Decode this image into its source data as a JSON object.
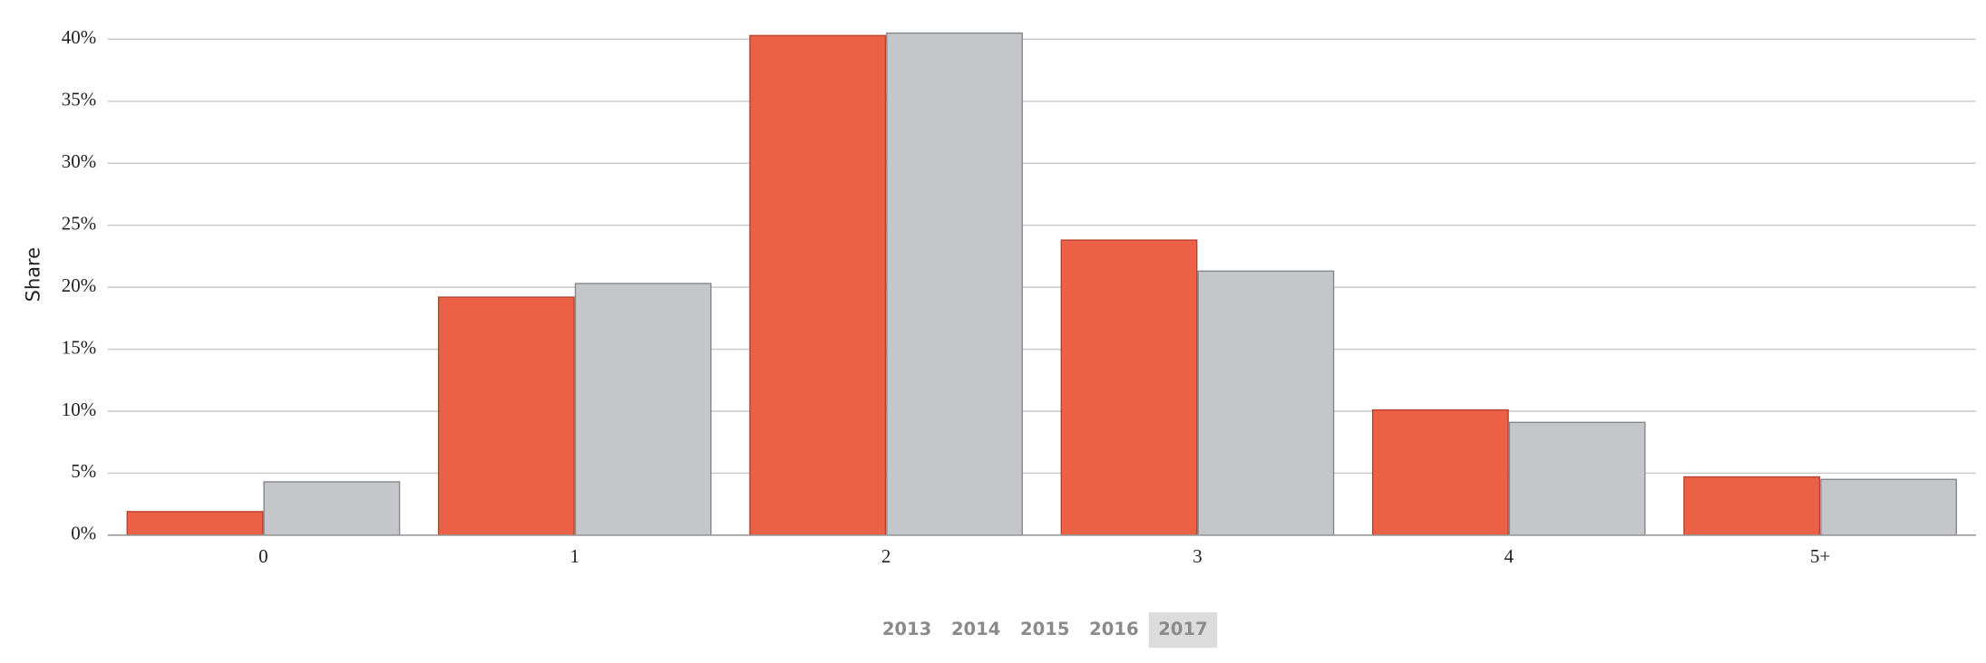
{
  "chart_data": {
    "type": "bar",
    "y_label": "Share",
    "categories": [
      "0",
      "1",
      "2",
      "3",
      "4",
      "5+"
    ],
    "series": [
      {
        "color": "#ec6046",
        "stroke": "#b5432f",
        "values": [
          1.9,
          19.2,
          40.3,
          23.8,
          10.1,
          4.7
        ]
      },
      {
        "color": "#c5c6ca",
        "stroke": "#86878a",
        "values": [
          4.3,
          20.3,
          40.5,
          21.3,
          9.1,
          4.5
        ]
      }
    ],
    "ylim": [
      0,
      40
    ],
    "yticks": [
      {
        "value": 0,
        "label": "0%"
      },
      {
        "value": 5,
        "label": "5%"
      },
      {
        "value": 10,
        "label": "10%"
      },
      {
        "value": 15,
        "label": "15%"
      },
      {
        "value": 20,
        "label": "20%"
      },
      {
        "value": 25,
        "label": "25%"
      },
      {
        "value": 30,
        "label": "30%"
      },
      {
        "value": 35,
        "label": "35%"
      },
      {
        "value": 40,
        "label": "40%"
      }
    ],
    "grid": true
  },
  "controls": {
    "years": [
      "2013",
      "2014",
      "2015",
      "2016",
      "2017"
    ],
    "selected": 4
  }
}
